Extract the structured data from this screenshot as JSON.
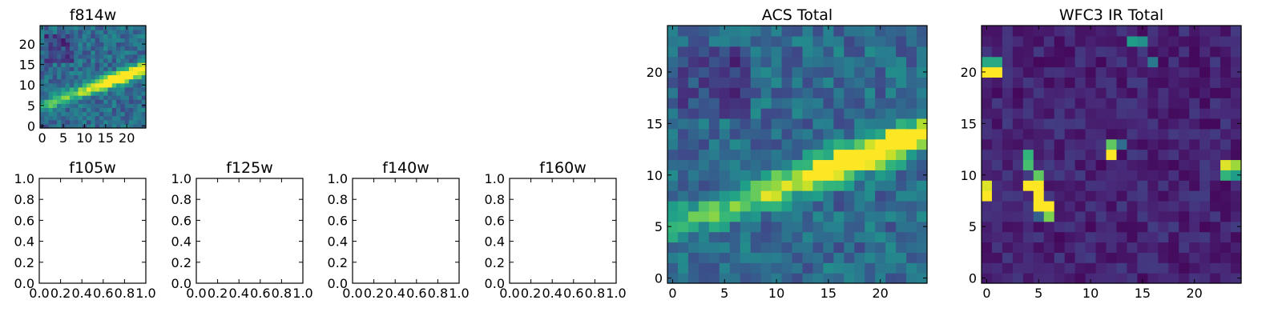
{
  "chart_data": [
    {
      "type": "heatmap",
      "title": "f814w",
      "colormap": "viridis",
      "grid": false,
      "size": [
        25,
        25
      ],
      "xlim": [
        -0.5,
        24.5
      ],
      "ylim": [
        -0.5,
        24.5
      ],
      "xticks": [
        0,
        5,
        10,
        15,
        20
      ],
      "yticks": [
        0,
        5,
        10,
        15,
        20
      ],
      "feature": "bright diagonal streak rising from (0, 5) to (24, 14), peak near (18, 11)"
    },
    {
      "type": "heatmap",
      "title": "ACS Total",
      "colormap": "viridis",
      "grid": false,
      "size": [
        25,
        25
      ],
      "xlim": [
        -0.5,
        24.5
      ],
      "ylim": [
        -0.5,
        24.5
      ],
      "xticks": [
        0,
        5,
        10,
        15,
        20
      ],
      "yticks": [
        0,
        5,
        10,
        15,
        20
      ],
      "feature": "bright diagonal streak rising from (0, 5) to (24, 14), peak near (18, 11)"
    },
    {
      "type": "heatmap",
      "title": "WFC3 IR Total",
      "colormap": "viridis",
      "grid": false,
      "size": [
        25,
        25
      ],
      "xlim": [
        -0.5,
        24.5
      ],
      "ylim": [
        -0.5,
        24.5
      ],
      "xticks": [
        0,
        5,
        10,
        15,
        20
      ],
      "yticks": [
        0,
        5,
        10,
        15,
        20
      ],
      "hot_pixels": [
        {
          "x": 0,
          "y": 20,
          "v": 1.0
        },
        {
          "x": 1,
          "y": 20,
          "v": 1.0
        },
        {
          "x": 0,
          "y": 21,
          "v": 0.6
        },
        {
          "x": 1,
          "y": 21,
          "v": 0.6
        },
        {
          "x": 0,
          "y": 9,
          "v": 0.95
        },
        {
          "x": 0,
          "y": 8,
          "v": 1.0
        },
        {
          "x": 4,
          "y": 12,
          "v": 0.65
        },
        {
          "x": 4,
          "y": 11,
          "v": 0.7
        },
        {
          "x": 4,
          "y": 9,
          "v": 1.0
        },
        {
          "x": 5,
          "y": 10,
          "v": 0.75
        },
        {
          "x": 5,
          "y": 9,
          "v": 1.0
        },
        {
          "x": 5,
          "y": 8,
          "v": 1.0
        },
        {
          "x": 5,
          "y": 7,
          "v": 1.0
        },
        {
          "x": 6,
          "y": 7,
          "v": 1.0
        },
        {
          "x": 6,
          "y": 6,
          "v": 0.8
        },
        {
          "x": 5,
          "y": 6,
          "v": 0.3
        },
        {
          "x": 12,
          "y": 12,
          "v": 1.0
        },
        {
          "x": 12,
          "y": 13,
          "v": 0.75
        },
        {
          "x": 13,
          "y": 13,
          "v": 0.35
        },
        {
          "x": 23,
          "y": 11,
          "v": 0.95
        },
        {
          "x": 24,
          "y": 11,
          "v": 0.85
        },
        {
          "x": 23,
          "y": 10,
          "v": 0.65
        },
        {
          "x": 24,
          "y": 10,
          "v": 0.55
        },
        {
          "x": 14,
          "y": 23,
          "v": 0.55
        },
        {
          "x": 15,
          "y": 23,
          "v": 0.5
        },
        {
          "x": 16,
          "y": 21,
          "v": 0.4
        }
      ]
    },
    {
      "type": "empty",
      "title": "f105w",
      "xlim": [
        0,
        1
      ],
      "ylim": [
        0,
        1
      ],
      "xticks": [
        "0.0",
        "0.2",
        "0.4",
        "0.6",
        "0.8",
        "1.0"
      ],
      "yticks": [
        "0.0",
        "0.2",
        "0.4",
        "0.6",
        "0.8",
        "1.0"
      ]
    },
    {
      "type": "empty",
      "title": "f125w",
      "xlim": [
        0,
        1
      ],
      "ylim": [
        0,
        1
      ],
      "xticks": [
        "0.0",
        "0.2",
        "0.4",
        "0.6",
        "0.8",
        "1.0"
      ],
      "yticks": [
        "0.0",
        "0.2",
        "0.4",
        "0.6",
        "0.8",
        "1.0"
      ]
    },
    {
      "type": "empty",
      "title": "f140w",
      "xlim": [
        0,
        1
      ],
      "ylim": [
        0,
        1
      ],
      "xticks": [
        "0.0",
        "0.2",
        "0.4",
        "0.6",
        "0.8",
        "1.0"
      ],
      "yticks": [
        "0.0",
        "0.2",
        "0.4",
        "0.6",
        "0.8",
        "1.0"
      ]
    },
    {
      "type": "empty",
      "title": "f160w",
      "xlim": [
        0,
        1
      ],
      "ylim": [
        0,
        1
      ],
      "xticks": [
        "0.0",
        "0.2",
        "0.4",
        "0.6",
        "0.8",
        "1.0"
      ],
      "yticks": [
        "0.0",
        "0.2",
        "0.4",
        "0.6",
        "0.8",
        "1.0"
      ]
    }
  ]
}
